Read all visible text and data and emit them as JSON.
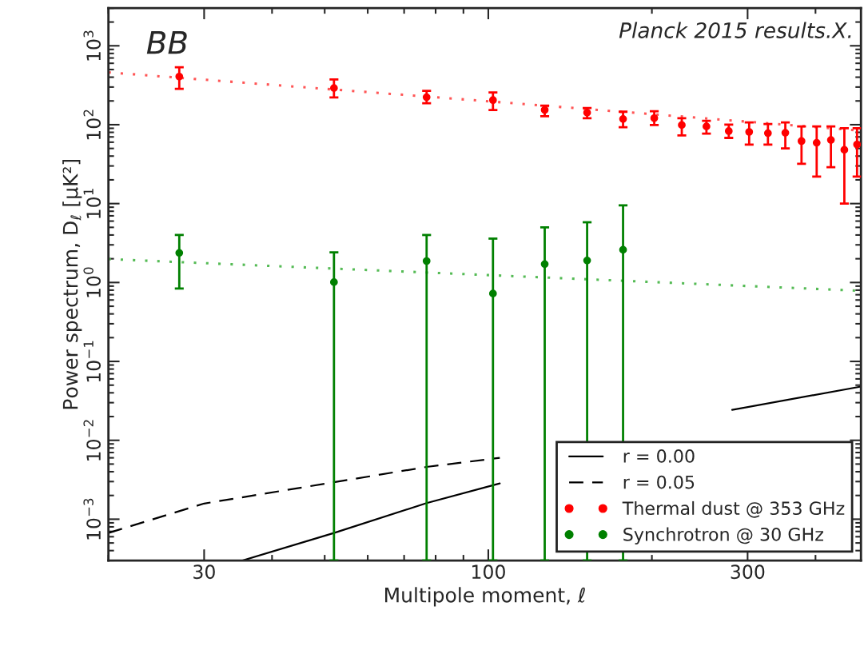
{
  "chart_data": {
    "type": "scatter",
    "xlabel": "Multipole moment, ℓ",
    "ylabel": "Power spectrum, D$_{ℓ}$ [μK²]",
    "annotations": [
      "BB",
      "Planck 2015 results.X."
    ],
    "log": "xy",
    "xlim": [
      20,
      485
    ],
    "xticks": [
      30,
      100,
      300
    ],
    "ylim": [
      0.0003,
      3000
    ],
    "yticks": [
      {
        "value": 0.001,
        "label": "10$^{−3}$"
      },
      {
        "value": 0.01,
        "label": "10$^{−2}$"
      },
      {
        "value": 0.1,
        "label": "10$^{−1}$"
      },
      {
        "value": 1,
        "label": "10$^{0}$"
      },
      {
        "value": 10,
        "label": "10$^{1}$"
      },
      {
        "value": 100,
        "label": "10$^{2}$"
      },
      {
        "value": 1000,
        "label": "10$^{3}$"
      }
    ],
    "legend": "bottom right",
    "grid": false,
    "series": [
      {
        "name": "r = 0.00",
        "type": "line",
        "line_style": "solid",
        "color": "#000000",
        "x": [
          35.3,
          52,
          77,
          105,
          200,
          281,
          485
        ],
        "values": [
          0.0003,
          0.00067,
          0.0016,
          0.00284,
          null,
          0.0243,
          0.048
        ]
      },
      {
        "name": "r = 0.05",
        "type": "line",
        "line_style": "dashed",
        "color": "#000000",
        "x": [
          20,
          30,
          52,
          77,
          99,
          105
        ],
        "values": [
          0.00067,
          0.00158,
          0.00294,
          0.0046,
          0.0057,
          0.006
        ]
      },
      {
        "type": "line",
        "line_style": "dotted",
        "color": "#ff5555",
        "x": [
          20,
          102,
          485
        ],
        "values": [
          460,
          196,
          84
        ]
      },
      {
        "type": "line",
        "line_style": "dotted",
        "color": "#55bb55",
        "x": [
          20,
          485
        ],
        "values": [
          1.98,
          0.785
        ]
      },
      {
        "name": "Thermal dust @ 353 GHz",
        "marker": "circle",
        "color": "#ff0000",
        "x": [
          27,
          52,
          77,
          102,
          127,
          152,
          177,
          202,
          227,
          252,
          277,
          302,
          327,
          352,
          377,
          402,
          427,
          452,
          477
        ],
        "values": [
          407,
          291,
          223,
          205,
          154,
          142,
          118,
          121,
          99,
          95,
          83,
          81,
          78,
          79,
          62,
          59,
          64,
          48,
          56
        ],
        "errors": [
          [
            284,
            535
          ],
          [
            221,
            374
          ],
          [
            187,
            268
          ],
          [
            153,
            256
          ],
          [
            128,
            174
          ],
          [
            121,
            163
          ],
          [
            93,
            146
          ],
          [
            99,
            148
          ],
          [
            73,
            121
          ],
          [
            77,
            112
          ],
          [
            68,
            100
          ],
          [
            56,
            107
          ],
          [
            56,
            102
          ],
          [
            50,
            107
          ],
          [
            32,
            95
          ],
          [
            22,
            95
          ],
          [
            29,
            95
          ],
          [
            10,
            90
          ],
          [
            22,
            90
          ]
        ]
      },
      {
        "name": "Synchrotron @ 30 GHz",
        "marker": "circle",
        "color": "#008000",
        "x": [
          27,
          52,
          77,
          102,
          127,
          152,
          177
        ],
        "values": [
          2.37,
          1.01,
          1.87,
          0.725,
          1.71,
          1.9,
          2.6
        ],
        "errors": [
          [
            0.84,
            4.0
          ],
          [
            0.0003,
            2.41
          ],
          [
            0.0003,
            4.0
          ],
          [
            0.0003,
            3.6
          ],
          [
            0.0003,
            5.0
          ],
          [
            0.0003,
            5.8
          ],
          [
            0.0003,
            9.5
          ]
        ]
      }
    ]
  }
}
